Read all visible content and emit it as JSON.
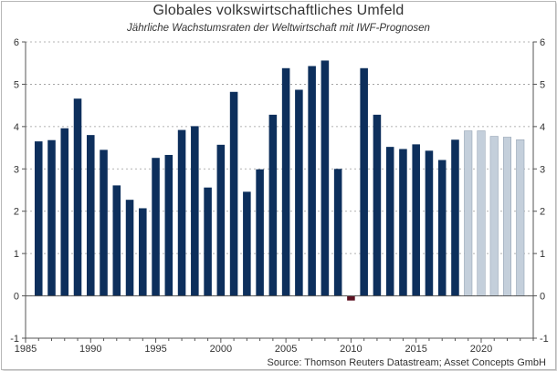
{
  "title": "Globales volkswirtschaftliches Umfeld",
  "subtitle": "Jährliche Wachstumsraten der Weltwirtschaft mit IWF-Prognosen",
  "source": "Source: Thomson Reuters Datastream; Asset Concepts GmbH",
  "colors": {
    "actual": "#0d2f5c",
    "forecast": "#c4cfdb",
    "negative": "#5c1020",
    "grid": "#9a9a9a",
    "axis": "#555555"
  },
  "chart_data": {
    "type": "bar",
    "x": [
      1986,
      1987,
      1988,
      1989,
      1990,
      1991,
      1992,
      1993,
      1994,
      1995,
      1996,
      1997,
      1998,
      1999,
      2000,
      2001,
      2002,
      2003,
      2004,
      2005,
      2006,
      2007,
      2008,
      2009,
      2010,
      2011,
      2012,
      2013,
      2014,
      2015,
      2016,
      2017,
      2018,
      2019,
      2020,
      2021,
      2022,
      2023
    ],
    "values": [
      3.65,
      3.68,
      3.96,
      4.66,
      3.8,
      3.45,
      2.61,
      2.27,
      2.07,
      3.26,
      3.33,
      3.92,
      4.01,
      2.56,
      3.57,
      4.82,
      2.46,
      2.99,
      4.28,
      5.38,
      4.87,
      5.43,
      5.56,
      3.0,
      -0.11,
      5.38,
      4.28,
      3.52,
      3.47,
      3.58,
      3.43,
      3.21,
      3.69,
      3.9,
      3.9,
      3.77,
      3.75,
      3.69
    ],
    "forecast_from": 2019,
    "xlim": [
      1985,
      2024
    ],
    "ylim": [
      -1,
      6
    ],
    "xticks": [
      1985,
      1990,
      1995,
      2000,
      2005,
      2010,
      2015,
      2020
    ],
    "yticks": [
      -1,
      0,
      1,
      2,
      3,
      4,
      5,
      6
    ],
    "grid": "horizontal dashed",
    "y_axis": "both sides"
  }
}
